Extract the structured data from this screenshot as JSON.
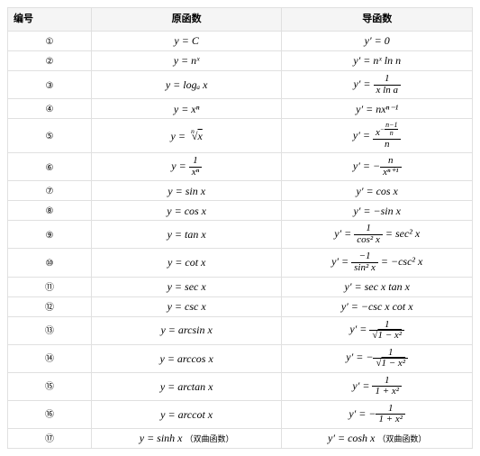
{
  "headers": {
    "col1": "编号",
    "col2": "原函数",
    "col3": "导函数"
  },
  "background_color": "#ffffff",
  "border_color": "#e0e0e0",
  "header_bg": "#f5f5f5",
  "font_family_math": "Times New Roman",
  "font_family_cjk": "SimSun",
  "rows": [
    {
      "num": "①",
      "f_plain": "y = C",
      "d_plain": "y′ = 0"
    },
    {
      "num": "②",
      "f_plain": "y = nˣ",
      "d_plain": "y′ = nˣ ln n"
    },
    {
      "num": "③",
      "f_plain": "y = logₐ x",
      "d_frac": {
        "pre": "y′ = ",
        "num": "1",
        "den": "x ln a"
      }
    },
    {
      "num": "④",
      "f_plain": "y = xⁿ",
      "d_plain": "y′ = nxⁿ⁻¹"
    },
    {
      "num": "⑤",
      "f_root": {
        "pre": "y = ",
        "idx": "n",
        "rad": "x"
      },
      "d_frac": {
        "pre": "y′ = ",
        "num_exp": {
          "base": "x",
          "neg": true,
          "sfrac_num": "n−1",
          "sfrac_den": "n"
        },
        "den": "n"
      }
    },
    {
      "num": "⑥",
      "f_frac": {
        "pre": "y = ",
        "num": "1",
        "den": "xⁿ"
      },
      "d_frac": {
        "pre": "y′ = −",
        "num": "n",
        "den": "xⁿ⁺¹"
      }
    },
    {
      "num": "⑦",
      "f_plain": "y = sin x",
      "d_plain": "y′ = cos x"
    },
    {
      "num": "⑧",
      "f_plain": "y = cos x",
      "d_plain": "y′ = −sin x"
    },
    {
      "num": "⑨",
      "f_plain": "y = tan x",
      "d_frac": {
        "pre": "y′ = ",
        "num": "1",
        "den": "cos² x",
        "post": " = sec² x"
      }
    },
    {
      "num": "⑩",
      "f_plain": "y = cot x",
      "d_frac": {
        "pre": "y′ = ",
        "num": "−1",
        "den": "sin² x",
        "post": " = −csc² x"
      }
    },
    {
      "num": "⑪",
      "f_plain": "y = sec x",
      "d_plain": "y′ = sec x tan x"
    },
    {
      "num": "⑫",
      "f_plain": "y = csc x",
      "d_plain": "y′ = −csc x cot x"
    },
    {
      "num": "⑬",
      "f_plain": "y = arcsin x",
      "d_frac": {
        "pre": "y′ = ",
        "num": "1",
        "den_sqrt": "1 − x²"
      }
    },
    {
      "num": "⑭",
      "f_plain": "y = arccos x",
      "d_frac": {
        "pre": "y′ = −",
        "num": "1",
        "den_sqrt": "1 − x²"
      }
    },
    {
      "num": "⑮",
      "f_plain": "y = arctan x",
      "d_frac": {
        "pre": "y′ = ",
        "num": "1",
        "den": "1 + x²"
      }
    },
    {
      "num": "⑯",
      "f_plain": "y = arccot x",
      "d_frac": {
        "pre": "y′ = −",
        "num": "1",
        "den": "1 + x²"
      }
    },
    {
      "num": "⑰",
      "f_plain": "y = sinh x",
      "f_note": "（双曲函数）",
      "d_plain": "y′ = cosh x",
      "d_note": "（双曲函数）"
    }
  ]
}
